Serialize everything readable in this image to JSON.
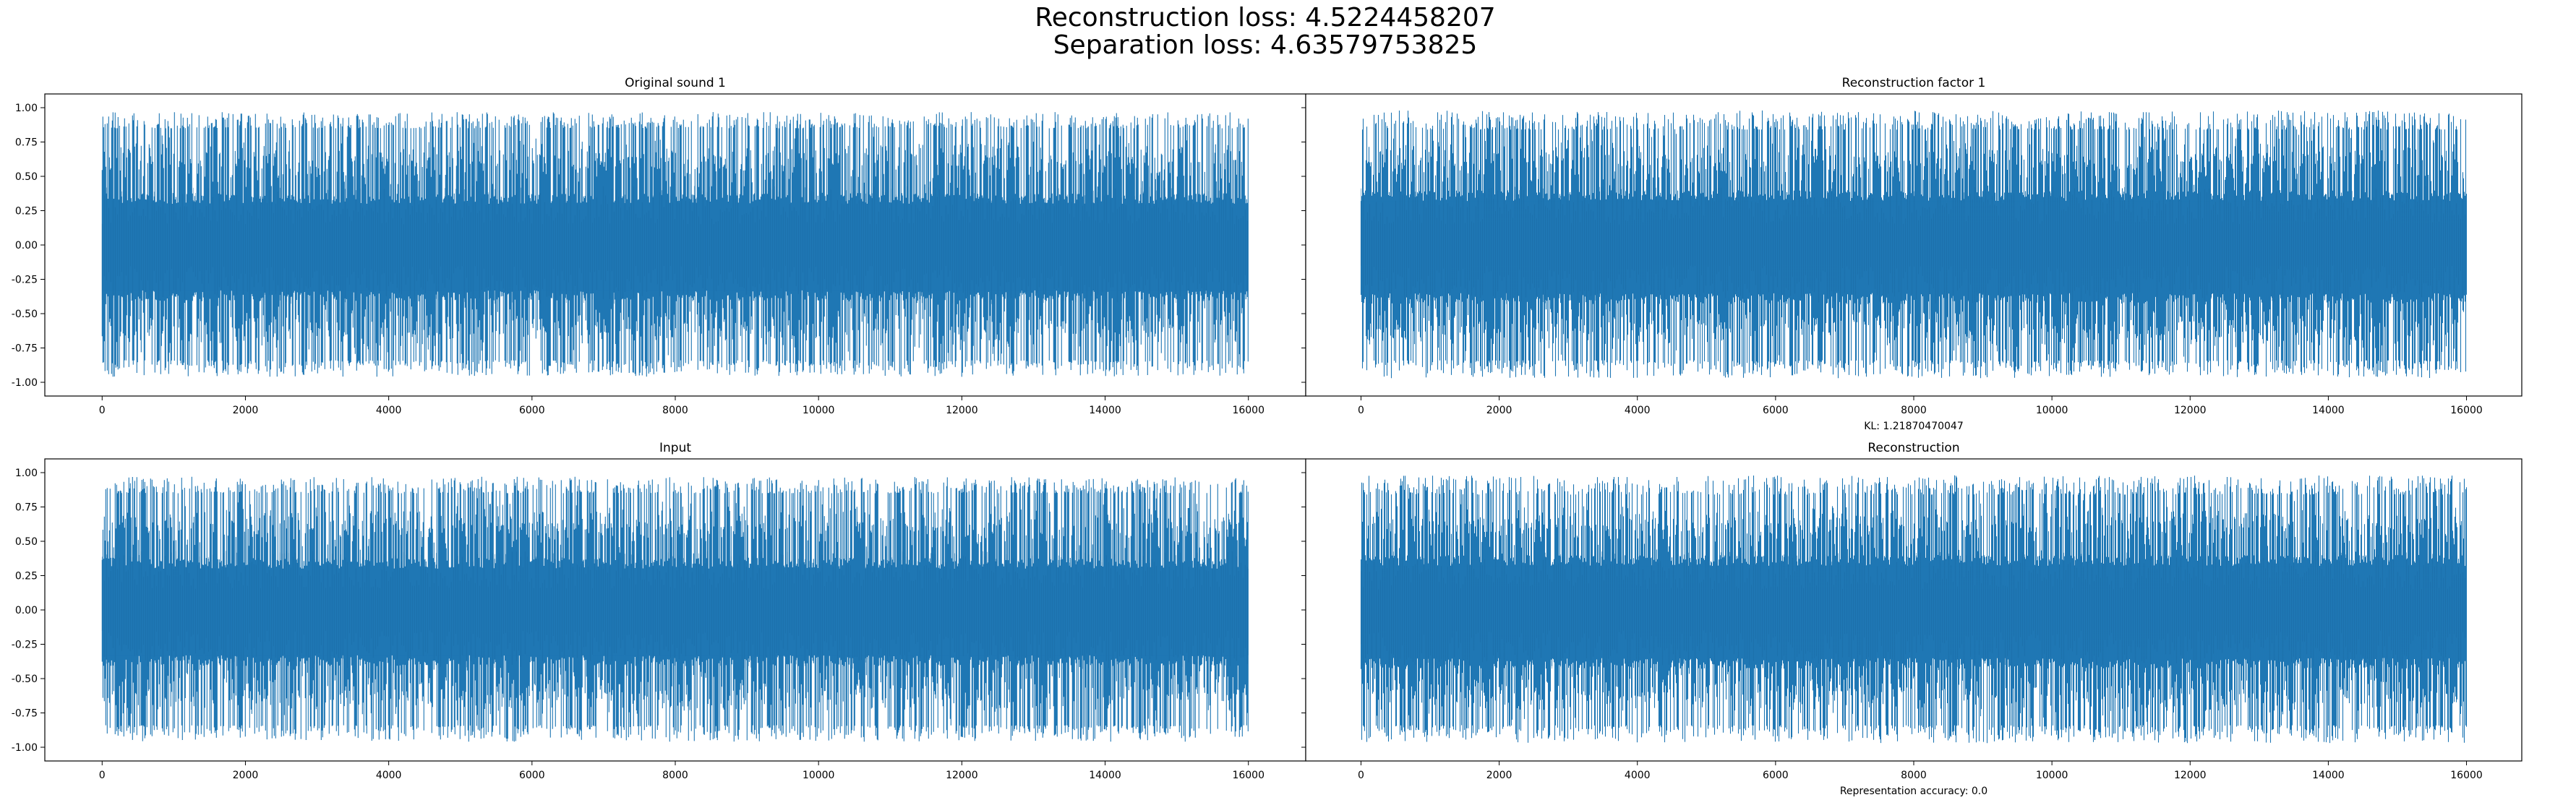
{
  "figure": {
    "suptitle_lines": [
      "Reconstruction loss: 4.5224458207",
      "Separation loss: 4.63579753825"
    ]
  },
  "chart_data": [
    {
      "type": "line",
      "title": "Original sound 1",
      "xlabel": "",
      "ylabel": "",
      "xlim": [
        -800,
        16800
      ],
      "ylim": [
        -1.1,
        1.1
      ],
      "x_ticks": [
        0,
        2000,
        4000,
        6000,
        8000,
        10000,
        12000,
        14000,
        16000
      ],
      "y_ticks": [
        -1.0,
        -0.75,
        -0.5,
        -0.25,
        0.0,
        0.25,
        0.5,
        0.75,
        1.0
      ],
      "y_tick_labels": [
        "-1.00",
        "-0.75",
        "-0.50",
        "-0.25",
        "0.00",
        "0.25",
        "0.50",
        "0.75",
        "1.00"
      ],
      "grid": false,
      "show_y_ticklabels": true,
      "series": [
        {
          "color": "#1f77b4",
          "x_start": 0,
          "x_end": 16000,
          "n_samples": 16000,
          "peak_positive": [
            0.85,
            0.97
          ],
          "peak_negative": [
            -0.84,
            -0.96
          ],
          "dense_band": [
            -0.33,
            0.3
          ]
        }
      ]
    },
    {
      "type": "line",
      "title": "Reconstruction factor 1",
      "xlabel": "KL: 1.21870470047",
      "ylabel": "",
      "xlim": [
        -800,
        16800
      ],
      "ylim": [
        -1.1,
        1.1
      ],
      "x_ticks": [
        0,
        2000,
        4000,
        6000,
        8000,
        10000,
        12000,
        14000,
        16000
      ],
      "y_ticks": [
        -1.0,
        -0.75,
        -0.5,
        -0.25,
        0.0,
        0.25,
        0.5,
        0.75,
        1.0
      ],
      "y_tick_labels": [
        "-1.00",
        "-0.75",
        "-0.50",
        "-0.25",
        "0.00",
        "0.25",
        "0.50",
        "0.75",
        "1.00"
      ],
      "grid": false,
      "show_y_ticklabels": false,
      "series": [
        {
          "color": "#1f77b4",
          "x_start": 0,
          "x_end": 16000,
          "n_samples": 16000,
          "peak_positive": [
            0.84,
            0.98
          ],
          "peak_negative": [
            -0.84,
            -0.97
          ],
          "dense_band": [
            -0.35,
            0.32
          ]
        }
      ]
    },
    {
      "type": "line",
      "title": "Input",
      "xlabel": "",
      "ylabel": "",
      "xlim": [
        -800,
        16800
      ],
      "ylim": [
        -1.1,
        1.1
      ],
      "x_ticks": [
        0,
        2000,
        4000,
        6000,
        8000,
        10000,
        12000,
        14000,
        16000
      ],
      "y_ticks": [
        -1.0,
        -0.75,
        -0.5,
        -0.25,
        0.0,
        0.25,
        0.5,
        0.75,
        1.0
      ],
      "y_tick_labels": [
        "-1.00",
        "-0.75",
        "-0.50",
        "-0.25",
        "0.00",
        "0.25",
        "0.50",
        "0.75",
        "1.00"
      ],
      "grid": false,
      "show_y_ticklabels": true,
      "series": [
        {
          "color": "#1f77b4",
          "x_start": 0,
          "x_end": 16000,
          "n_samples": 16000,
          "peak_positive": [
            0.85,
            0.97
          ],
          "peak_negative": [
            -0.84,
            -0.96
          ],
          "dense_band": [
            -0.33,
            0.3
          ]
        }
      ]
    },
    {
      "type": "line",
      "title": "Reconstruction",
      "xlabel": "Representation accuracy: 0.0",
      "ylabel": "",
      "xlim": [
        -800,
        16800
      ],
      "ylim": [
        -1.1,
        1.1
      ],
      "x_ticks": [
        0,
        2000,
        4000,
        6000,
        8000,
        10000,
        12000,
        14000,
        16000
      ],
      "y_ticks": [
        -1.0,
        -0.75,
        -0.5,
        -0.25,
        0.0,
        0.25,
        0.5,
        0.75,
        1.0
      ],
      "y_tick_labels": [
        "-1.00",
        "-0.75",
        "-0.50",
        "-0.25",
        "0.00",
        "0.25",
        "0.50",
        "0.75",
        "1.00"
      ],
      "grid": false,
      "show_y_ticklabels": false,
      "series": [
        {
          "color": "#1f77b4",
          "x_start": 0,
          "x_end": 16000,
          "n_samples": 16000,
          "peak_positive": [
            0.84,
            0.98
          ],
          "peak_negative": [
            -0.84,
            -0.97
          ],
          "dense_band": [
            -0.35,
            0.32
          ]
        }
      ]
    }
  ]
}
